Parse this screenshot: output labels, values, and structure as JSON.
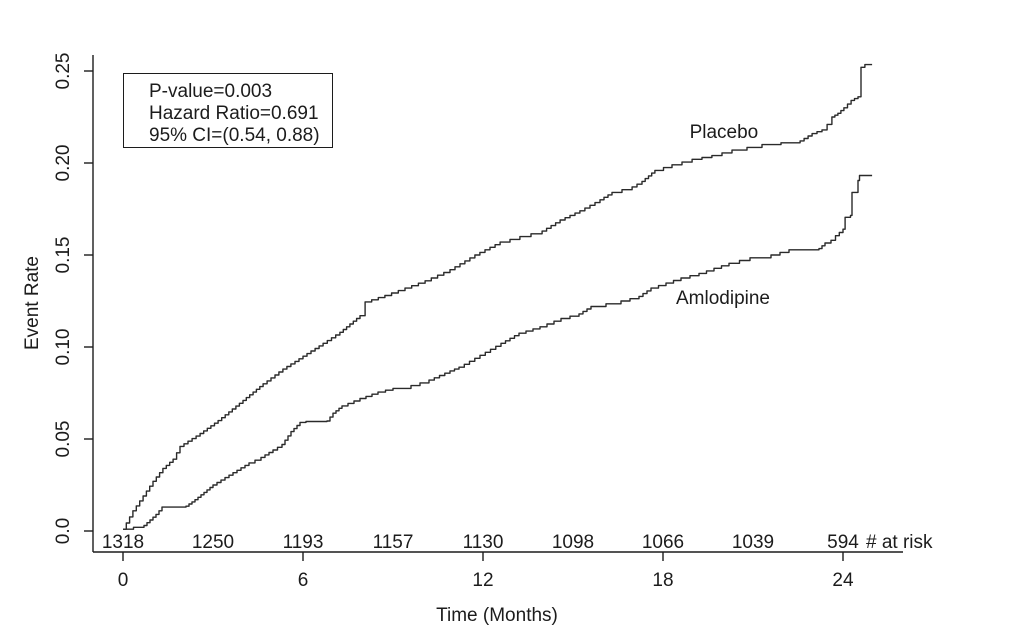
{
  "chart_data": {
    "type": "line",
    "subtype": "kaplan-meier-step-curves",
    "title": "",
    "xlabel": "Time (Months)",
    "ylabel": "Event Rate",
    "xlim": [
      0,
      25.5
    ],
    "ylim": [
      0,
      0.26
    ],
    "grid": false,
    "x_ticks": [
      0,
      6,
      12,
      18,
      24
    ],
    "y_tick_labels": [
      "0.0",
      "0.05",
      "0.10",
      "0.15",
      "0.20",
      "0.25"
    ],
    "annotation": {
      "lines": [
        "P-value=0.003",
        "Hazard Ratio=0.691",
        "95% CI=(0.54, 0.88)"
      ]
    },
    "risk_table": {
      "label": "# at risk",
      "months": [
        0,
        3,
        6,
        9,
        12,
        15,
        18,
        21,
        24
      ],
      "counts": [
        "1318",
        "1250",
        "1193",
        "1157",
        "1130",
        "1098",
        "1066",
        "1039",
        "594"
      ]
    },
    "series": [
      {
        "name": "Placebo",
        "label_pos": [
          20.03,
          0.2136
        ],
        "points": [
          [
            0,
            0.001
          ],
          [
            0.33,
            0.011
          ],
          [
            0.67,
            0.019
          ],
          [
            1,
            0.027
          ],
          [
            1.33,
            0.034
          ],
          [
            1.67,
            0.039
          ],
          [
            1.9,
            0.046
          ],
          [
            2.57,
            0.053
          ],
          [
            3.17,
            0.06
          ],
          [
            4,
            0.071
          ],
          [
            4.67,
            0.08
          ],
          [
            5.33,
            0.088
          ],
          [
            6,
            0.095
          ],
          [
            6.67,
            0.102
          ],
          [
            7.23,
            0.108
          ],
          [
            7.9,
            0.117
          ],
          [
            8.07,
            0.1245
          ],
          [
            8.73,
            0.128
          ],
          [
            9.4,
            0.132
          ],
          [
            10.07,
            0.136
          ],
          [
            10.9,
            0.142
          ],
          [
            11.73,
            0.15
          ],
          [
            12.57,
            0.157
          ],
          [
            13.23,
            0.16
          ],
          [
            13.97,
            0.163
          ],
          [
            14.57,
            0.169
          ],
          [
            15.23,
            0.174
          ],
          [
            15.9,
            0.18
          ],
          [
            16.3,
            0.184
          ],
          [
            16.97,
            0.187
          ],
          [
            17.3,
            0.19
          ],
          [
            17.73,
            0.196
          ],
          [
            18.3,
            0.199
          ],
          [
            18.97,
            0.202
          ],
          [
            19.63,
            0.204
          ],
          [
            20.3,
            0.207
          ],
          [
            21.3,
            0.21
          ],
          [
            22.57,
            0.212
          ],
          [
            22.97,
            0.216
          ],
          [
            23.3,
            0.218
          ],
          [
            23.47,
            0.221
          ],
          [
            23.63,
            0.225
          ],
          [
            23.83,
            0.227
          ],
          [
            24.03,
            0.23
          ],
          [
            24.27,
            0.234
          ],
          [
            24.5,
            0.236
          ],
          [
            24.6,
            0.236
          ],
          [
            24.6,
            0.252
          ],
          [
            24.73,
            0.2535
          ],
          [
            24.97,
            0.2535
          ]
        ]
      },
      {
        "name": "Amlodipine",
        "label_pos": [
          20.0,
          0.1234
        ],
        "points": [
          [
            0,
            0.001
          ],
          [
            0.7,
            0.003
          ],
          [
            0.9,
            0.006
          ],
          [
            1.1,
            0.009
          ],
          [
            1.3,
            0.013
          ],
          [
            2.1,
            0.0135
          ],
          [
            2.4,
            0.017
          ],
          [
            2.7,
            0.021
          ],
          [
            3,
            0.025
          ],
          [
            3.4,
            0.029
          ],
          [
            3.8,
            0.033
          ],
          [
            4.2,
            0.037
          ],
          [
            4.6,
            0.04
          ],
          [
            5,
            0.044
          ],
          [
            5.3,
            0.047
          ],
          [
            5.6,
            0.054
          ],
          [
            5.9,
            0.059
          ],
          [
            6.1,
            0.0595
          ],
          [
            6.8,
            0.0598
          ],
          [
            7,
            0.064
          ],
          [
            7.3,
            0.068
          ],
          [
            7.9,
            0.072
          ],
          [
            8.5,
            0.0755
          ],
          [
            9,
            0.0775
          ],
          [
            9.6,
            0.079
          ],
          [
            10.2,
            0.082
          ],
          [
            10.9,
            0.087
          ],
          [
            11.2,
            0.089
          ],
          [
            11.9,
            0.0955
          ],
          [
            12.6,
            0.102
          ],
          [
            13.2,
            0.1075
          ],
          [
            13.9,
            0.111
          ],
          [
            14.6,
            0.1155
          ],
          [
            15.2,
            0.118
          ],
          [
            15.6,
            0.122
          ],
          [
            16.6,
            0.125
          ],
          [
            17.2,
            0.1275
          ],
          [
            17.6,
            0.132
          ],
          [
            18.6,
            0.1375
          ],
          [
            19.2,
            0.14
          ],
          [
            20.2,
            0.1455
          ],
          [
            20.9,
            0.1485
          ],
          [
            21.6,
            0.15
          ],
          [
            22.2,
            0.1528
          ],
          [
            23.2,
            0.1535
          ],
          [
            23.4,
            0.1565
          ],
          [
            23.6,
            0.158
          ],
          [
            23.75,
            0.1605
          ],
          [
            24,
            0.164
          ],
          [
            24.07,
            0.164
          ],
          [
            24.07,
            0.1705
          ],
          [
            24.25,
            0.1715
          ],
          [
            24.3,
            0.1715
          ],
          [
            24.3,
            0.184
          ],
          [
            24.45,
            0.184
          ],
          [
            24.5,
            0.1905
          ],
          [
            24.55,
            0.1932
          ],
          [
            24.97,
            0.1932
          ]
        ]
      }
    ],
    "colors": {
      "line": "#2a2a2a",
      "axis": "#1c1c1c",
      "background": "#ffffff"
    }
  }
}
